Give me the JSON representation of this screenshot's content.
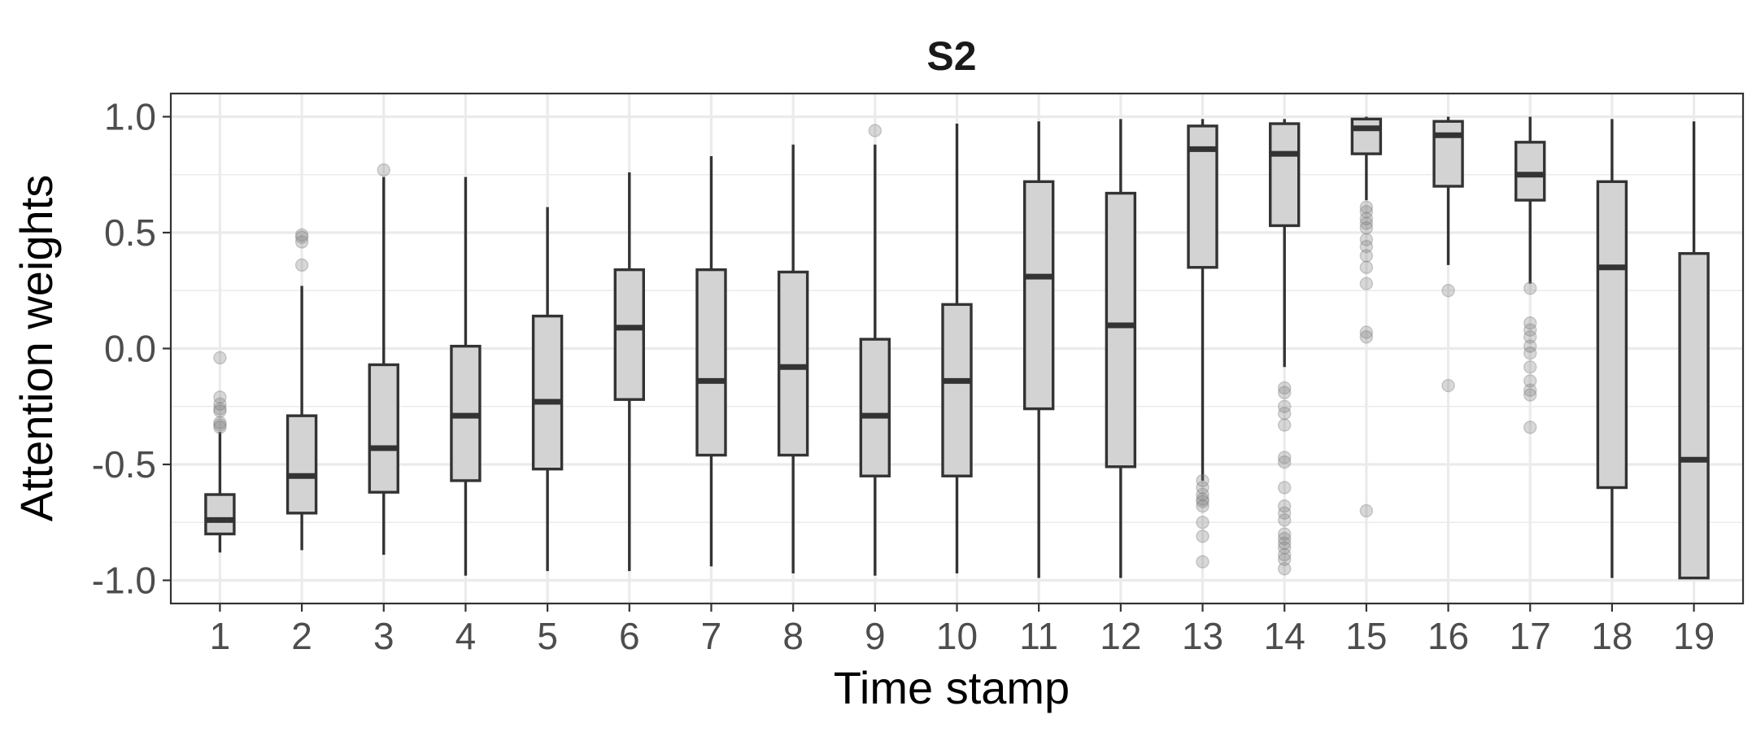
{
  "chart_data": {
    "type": "boxplot",
    "title": "S2",
    "xlabel": "Time stamp",
    "ylabel": "Attention weights",
    "ylim": [
      -1.1,
      1.1
    ],
    "yticks": [
      "-1.0",
      "-0.5",
      "0.0",
      "0.5",
      "1.0"
    ],
    "ytick_values": [
      -1.0,
      -0.5,
      0.0,
      0.5,
      1.0
    ],
    "grid": true,
    "colors": {
      "box_fill": "#d3d3d3",
      "box_stroke": "#333333",
      "outlier": "#7f7f7f",
      "grid": "#ebebeb",
      "panel_border": "#333333"
    },
    "categories": [
      "1",
      "2",
      "3",
      "4",
      "5",
      "6",
      "7",
      "8",
      "9",
      "10",
      "11",
      "12",
      "13",
      "14",
      "15",
      "16",
      "17",
      "18",
      "19"
    ],
    "boxes": [
      {
        "x": "1",
        "lower_whisker": -0.88,
        "q1": -0.8,
        "median": -0.74,
        "q3": -0.63,
        "upper_whisker": -0.36,
        "outliers": [
          -0.04,
          -0.21,
          -0.24,
          -0.26,
          -0.27,
          -0.32,
          -0.33,
          -0.34
        ]
      },
      {
        "x": "2",
        "lower_whisker": -0.87,
        "q1": -0.71,
        "median": -0.55,
        "q3": -0.29,
        "upper_whisker": 0.27,
        "outliers": [
          0.36,
          0.46,
          0.48,
          0.49
        ]
      },
      {
        "x": "3",
        "lower_whisker": -0.89,
        "q1": -0.62,
        "median": -0.43,
        "q3": -0.07,
        "upper_whisker": 0.74,
        "outliers": [
          0.77
        ]
      },
      {
        "x": "4",
        "lower_whisker": -0.98,
        "q1": -0.57,
        "median": -0.29,
        "q3": 0.01,
        "upper_whisker": 0.74,
        "outliers": []
      },
      {
        "x": "5",
        "lower_whisker": -0.96,
        "q1": -0.52,
        "median": -0.23,
        "q3": 0.14,
        "upper_whisker": 0.61,
        "outliers": []
      },
      {
        "x": "6",
        "lower_whisker": -0.96,
        "q1": -0.22,
        "median": 0.09,
        "q3": 0.34,
        "upper_whisker": 0.76,
        "outliers": []
      },
      {
        "x": "7",
        "lower_whisker": -0.94,
        "q1": -0.46,
        "median": -0.14,
        "q3": 0.34,
        "upper_whisker": 0.83,
        "outliers": []
      },
      {
        "x": "8",
        "lower_whisker": -0.97,
        "q1": -0.46,
        "median": -0.08,
        "q3": 0.33,
        "upper_whisker": 0.88,
        "outliers": []
      },
      {
        "x": "9",
        "lower_whisker": -0.98,
        "q1": -0.55,
        "median": -0.29,
        "q3": 0.04,
        "upper_whisker": 0.88,
        "outliers": [
          0.94
        ]
      },
      {
        "x": "10",
        "lower_whisker": -0.97,
        "q1": -0.55,
        "median": -0.14,
        "q3": 0.19,
        "upper_whisker": 0.97,
        "outliers": []
      },
      {
        "x": "11",
        "lower_whisker": -0.99,
        "q1": -0.26,
        "median": 0.31,
        "q3": 0.72,
        "upper_whisker": 0.98,
        "outliers": []
      },
      {
        "x": "12",
        "lower_whisker": -0.99,
        "q1": -0.51,
        "median": 0.1,
        "q3": 0.67,
        "upper_whisker": 0.99,
        "outliers": []
      },
      {
        "x": "13",
        "lower_whisker": -0.57,
        "q1": 0.35,
        "median": 0.86,
        "q3": 0.96,
        "upper_whisker": 0.99,
        "outliers": [
          -0.57,
          -0.6,
          -0.63,
          -0.65,
          -0.66,
          -0.68,
          -0.75,
          -0.81,
          -0.92
        ]
      },
      {
        "x": "14",
        "lower_whisker": -0.08,
        "q1": 0.53,
        "median": 0.84,
        "q3": 0.97,
        "upper_whisker": 0.99,
        "outliers": [
          -0.17,
          -0.19,
          -0.25,
          -0.28,
          -0.33,
          -0.47,
          -0.49,
          -0.6,
          -0.68,
          -0.71,
          -0.74,
          -0.8,
          -0.82,
          -0.84,
          -0.86,
          -0.89,
          -0.91,
          -0.95
        ]
      },
      {
        "x": "15",
        "lower_whisker": 0.64,
        "q1": 0.84,
        "median": 0.95,
        "q3": 0.99,
        "upper_whisker": 1.0,
        "outliers": [
          0.61,
          0.59,
          0.56,
          0.54,
          0.52,
          0.47,
          0.44,
          0.4,
          0.35,
          0.28,
          0.07,
          0.05,
          -0.7
        ]
      },
      {
        "x": "16",
        "lower_whisker": 0.36,
        "q1": 0.7,
        "median": 0.92,
        "q3": 0.98,
        "upper_whisker": 1.0,
        "outliers": [
          0.25,
          -0.16
        ]
      },
      {
        "x": "17",
        "lower_whisker": 0.28,
        "q1": 0.64,
        "median": 0.75,
        "q3": 0.89,
        "upper_whisker": 1.0,
        "outliers": [
          0.26,
          0.11,
          0.08,
          0.05,
          0.01,
          -0.02,
          -0.08,
          -0.14,
          -0.18,
          -0.2,
          -0.34
        ]
      },
      {
        "x": "18",
        "lower_whisker": -0.99,
        "q1": -0.6,
        "median": 0.35,
        "q3": 0.72,
        "upper_whisker": 0.99,
        "outliers": []
      },
      {
        "x": "19",
        "lower_whisker": -0.99,
        "q1": -0.99,
        "median": -0.48,
        "q3": 0.41,
        "upper_whisker": 0.98,
        "outliers": []
      }
    ]
  }
}
